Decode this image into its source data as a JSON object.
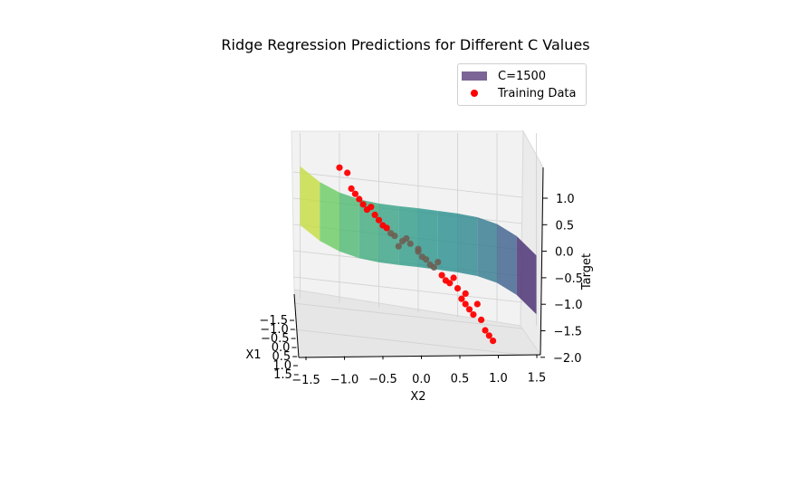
{
  "chart_data": {
    "type": "scatter",
    "title": "Ridge Regression Predictions for Different C Values",
    "xlabel": "X1",
    "ylabel": "X2",
    "zlabel": "Target",
    "xlim": [
      -1.5,
      1.5
    ],
    "ylim": [
      -1.5,
      1.5
    ],
    "zlim": [
      -2.0,
      1.0
    ],
    "x_ticks": [
      "−1.5",
      "−1.0",
      "−0.5",
      "0.0",
      "0.5",
      "1.0",
      "1.5"
    ],
    "y_ticks": [
      "−1.5",
      "−1.0",
      "−0.5",
      "0.0",
      "0.5",
      "1.0",
      "1.5"
    ],
    "z_ticks": [
      "1.0",
      "0.5",
      "0.0",
      "−0.5",
      "−1.0",
      "−1.5",
      "−2.0"
    ],
    "grid": true,
    "legend_position": "upper-right",
    "series": [
      {
        "name": "C=1500",
        "kind": "surface",
        "colormap": "viridis",
        "x2": [
          -1.5,
          -1.25,
          -1.0,
          -0.75,
          -0.5,
          -0.25,
          0.0,
          0.25,
          0.5,
          0.75,
          1.0,
          1.25,
          1.5
        ],
        "target": [
          0.85,
          0.55,
          0.35,
          0.22,
          0.14,
          0.09,
          0.05,
          0.0,
          -0.05,
          -0.12,
          -0.25,
          -0.48,
          -0.85
        ],
        "legend_color": "#7b6496"
      },
      {
        "name": "Training Data",
        "kind": "scatter",
        "color": "#ff0000",
        "x2": [
          -1.0,
          -0.9,
          -0.85,
          -0.8,
          -0.75,
          -0.7,
          -0.6,
          -0.55,
          -0.5,
          -0.45,
          -0.4,
          -0.3,
          -0.2,
          -0.1,
          0.0,
          0.05,
          0.1,
          0.15,
          0.2,
          0.3,
          0.35,
          0.4,
          0.5,
          0.55,
          0.6,
          0.65,
          0.7,
          0.8,
          0.85,
          0.9,
          -0.25,
          0.25,
          0.45,
          0.75,
          -0.65,
          0.0,
          -0.35,
          0.6,
          0.95,
          -0.15
        ],
        "target": [
          1.6,
          1.5,
          1.2,
          1.1,
          1.0,
          0.9,
          0.85,
          0.7,
          0.6,
          0.5,
          0.45,
          0.3,
          0.2,
          0.15,
          0.05,
          -0.1,
          -0.15,
          -0.25,
          -0.3,
          -0.45,
          -0.55,
          -0.6,
          -0.7,
          -0.9,
          -1.0,
          -1.1,
          -1.2,
          -1.3,
          -1.5,
          -1.6,
          0.1,
          -0.2,
          -0.5,
          -1.0,
          0.8,
          0.0,
          0.35,
          -0.8,
          -1.7,
          0.25
        ]
      }
    ]
  }
}
